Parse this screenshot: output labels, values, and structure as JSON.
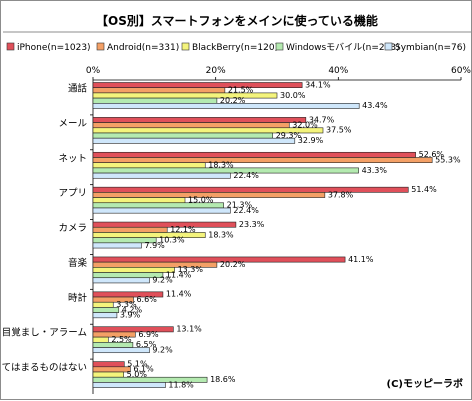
{
  "chart_data": {
    "type": "bar",
    "orientation": "horizontal",
    "title": "【OS別】スマートフォンをメインに使っている機能",
    "categories": [
      "通話",
      "メール",
      "ネット",
      "アプリ",
      "カメラ",
      "音楽",
      "時計",
      "目覚まし・アラーム",
      "あてはまるものはない"
    ],
    "series": [
      {
        "name": "iPhone(n=1023)",
        "color": "#e0505a",
        "values": [
          34.1,
          34.7,
          52.6,
          51.4,
          23.3,
          41.1,
          11.4,
          13.1,
          5.1
        ]
      },
      {
        "name": "Android(n=331)",
        "color": "#f4a066",
        "values": [
          21.5,
          32.0,
          55.3,
          37.8,
          12.1,
          20.2,
          6.6,
          6.9,
          6.1
        ]
      },
      {
        "name": "BlackBerry(n=120)",
        "color": "#f4f47c",
        "values": [
          30.0,
          37.5,
          18.3,
          15.0,
          18.3,
          13.3,
          3.3,
          2.5,
          5.0
        ]
      },
      {
        "name": "Windowsモバイル(n=263)",
        "color": "#b4eab0",
        "values": [
          20.2,
          29.3,
          43.3,
          21.3,
          10.3,
          11.4,
          4.2,
          6.5,
          18.6
        ]
      },
      {
        "name": "Symbian(n=76)",
        "color": "#cfe7fb",
        "values": [
          43.4,
          32.9,
          22.4,
          22.4,
          7.9,
          9.2,
          3.9,
          9.2,
          11.8
        ]
      }
    ],
    "value_labels": [
      [
        "34.1%",
        "34.7%",
        "52.6%",
        "51.4%",
        "23.3%",
        "41.1%",
        "11.4%",
        "13.1%",
        "5.1%"
      ],
      [
        "21.5%",
        "32.0%",
        "55.3%",
        "37.8%",
        "12.1%",
        "20.2%",
        "6.6%",
        "6.9%",
        "6.1%"
      ],
      [
        "30.0%",
        "37.5%",
        "18.3%",
        "15.0%",
        "18.3%",
        "13.3%",
        "3.3%",
        "2.5%",
        "5.0%"
      ],
      [
        "20.2%",
        "29.3%",
        "43.3%",
        "21.3%",
        "10.3%",
        "11.4%",
        "4.2%",
        "6.5%",
        "18.6%"
      ],
      [
        "43.4%",
        "32.9%",
        "22.4%",
        "22.4%",
        "7.9%",
        "9.2%",
        "3.9%",
        "9.2%",
        "11.8%"
      ]
    ],
    "xticks": [
      0,
      20,
      40,
      60
    ],
    "xtick_labels": [
      "0%",
      "20%",
      "40%",
      "60%"
    ],
    "xlim": [
      0,
      60
    ],
    "grid": false,
    "legend_position": "top",
    "copyright": "(C)モッピーラボ"
  }
}
